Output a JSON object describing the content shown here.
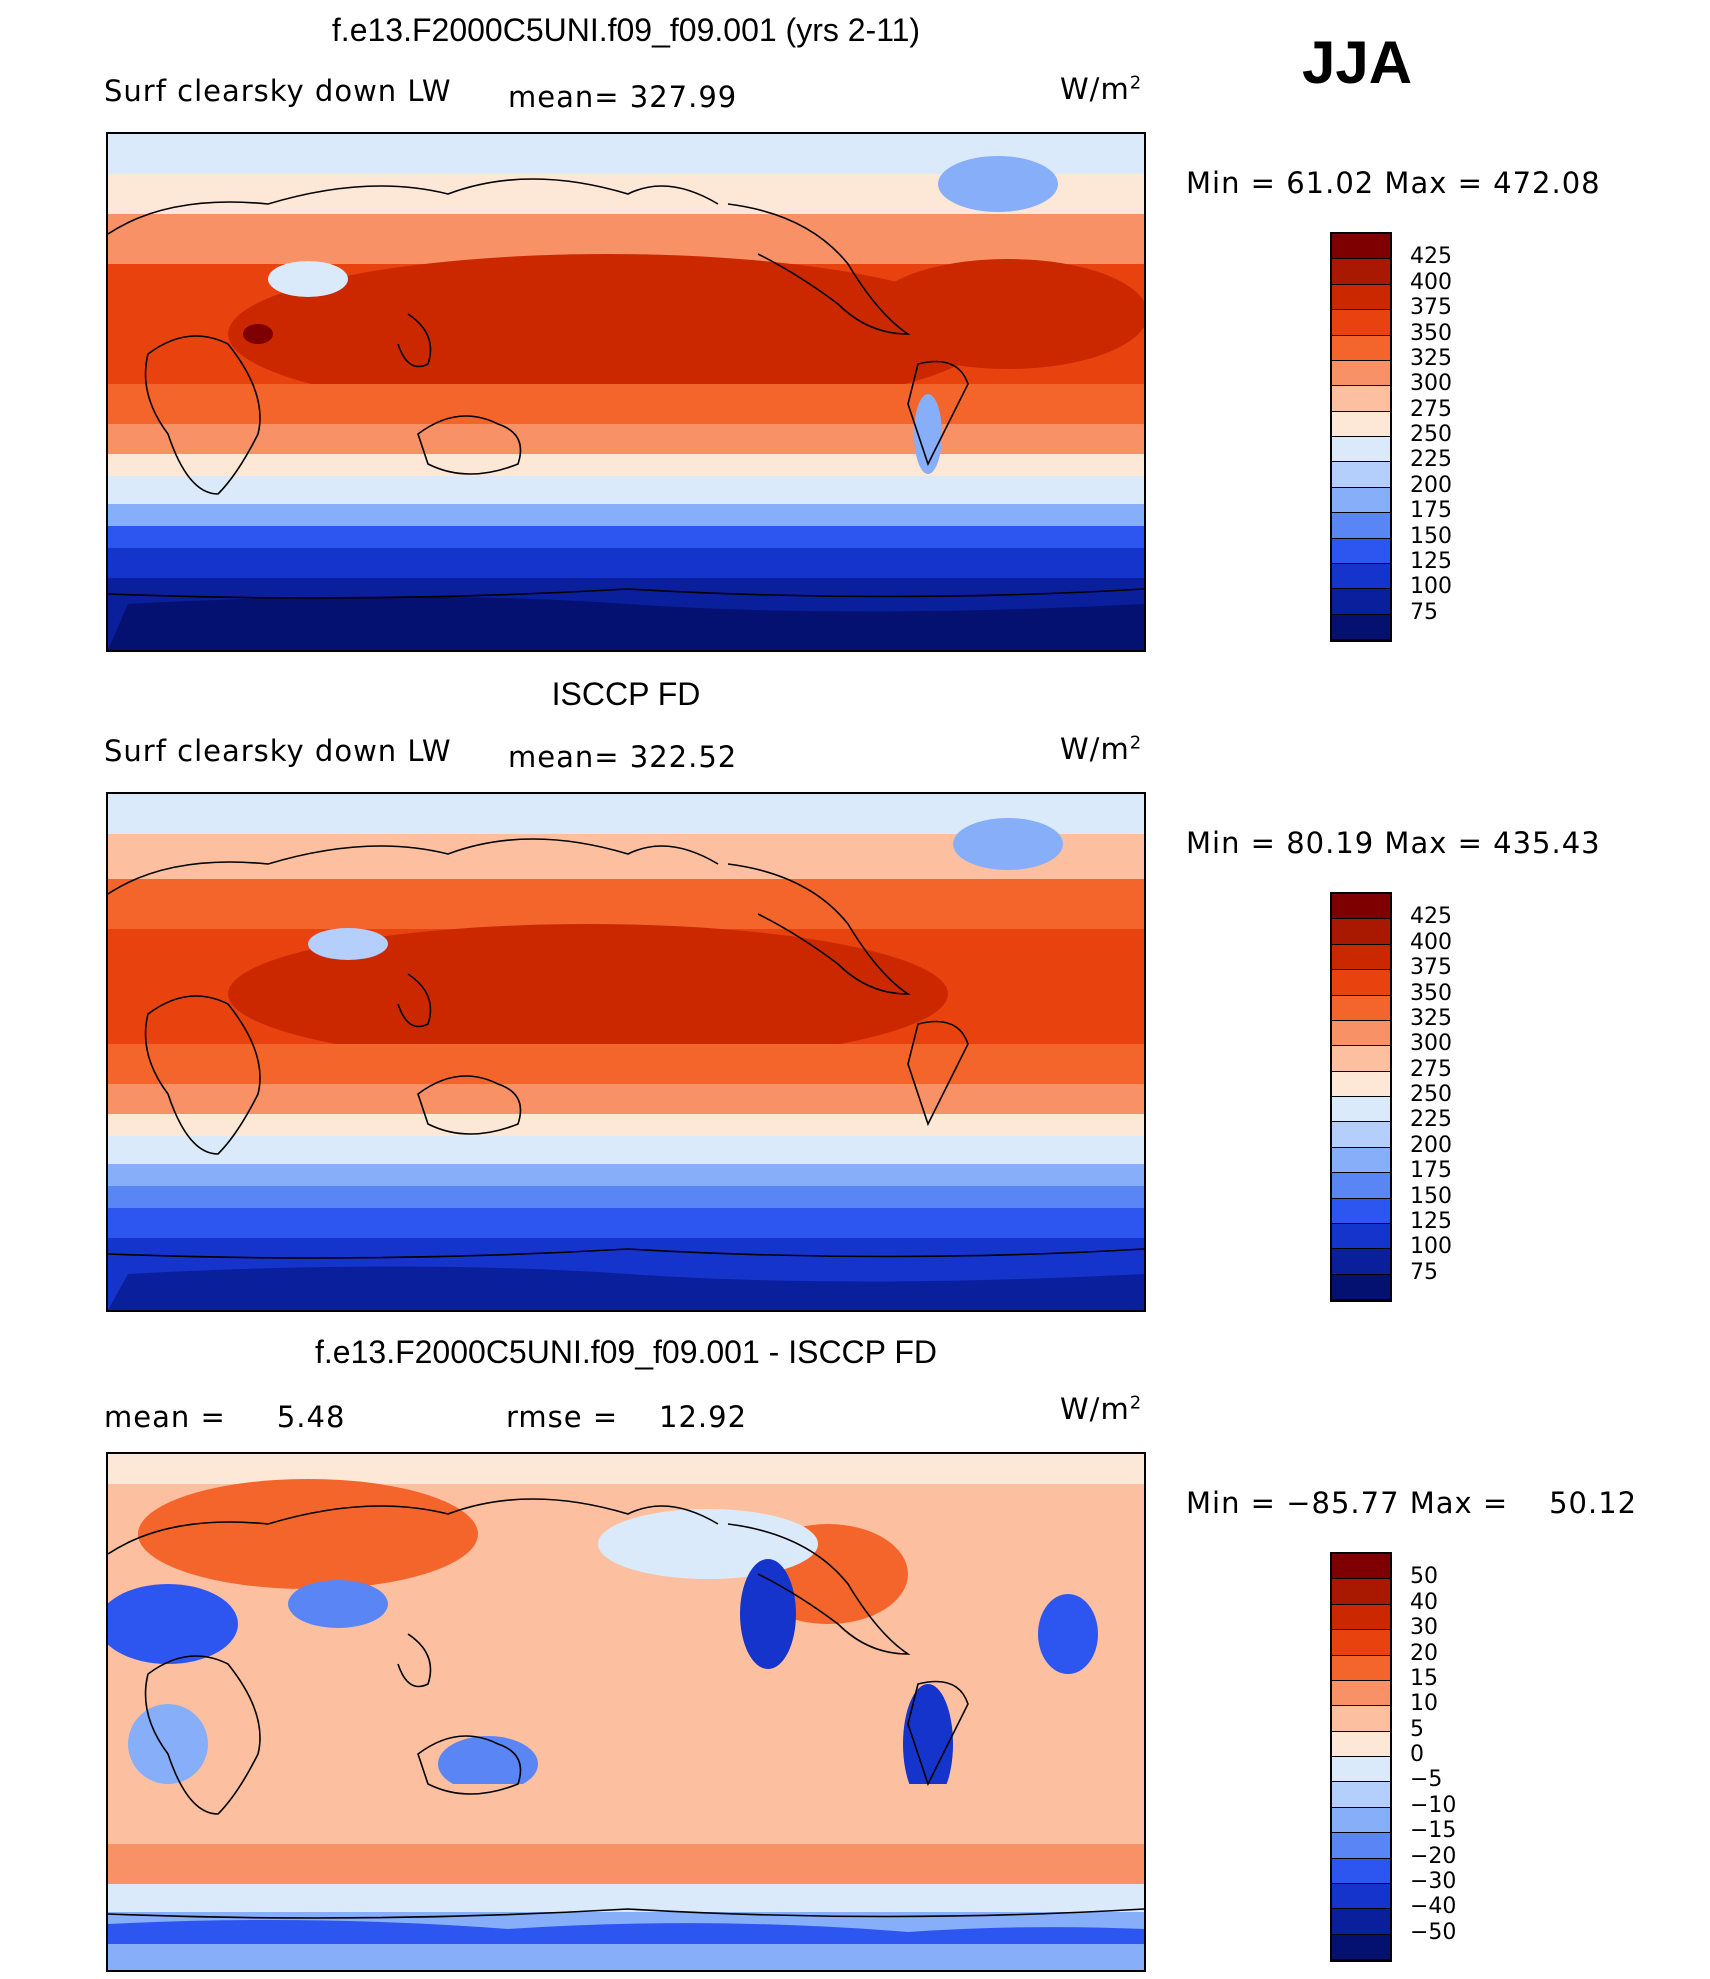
{
  "season": "JJA",
  "units": "W/m",
  "units_sup": "2",
  "panels": [
    {
      "title": "f.e13.F2000C5UNI.f09_f09.001 (yrs 2-11)",
      "variable": "Surf clearsky down LW",
      "stat1": "mean= 327.99",
      "stat2": "",
      "minmax": "Min =   61.02 Max = 472.08",
      "scale": "abs",
      "levels": [
        "425",
        "400",
        "375",
        "350",
        "325",
        "300",
        "275",
        "250",
        "225",
        "200",
        "175",
        "150",
        "125",
        "100",
        "75"
      ]
    },
    {
      "title": "ISCCP FD",
      "variable": "Surf clearsky down LW",
      "stat1": "mean= 322.52",
      "stat2": "",
      "minmax": "Min =   80.19 Max = 435.43",
      "scale": "abs",
      "levels": [
        "425",
        "400",
        "375",
        "350",
        "325",
        "300",
        "275",
        "250",
        "225",
        "200",
        "175",
        "150",
        "125",
        "100",
        "75"
      ]
    },
    {
      "title": "f.e13.F2000C5UNI.f09_f09.001 - ISCCP FD",
      "variable": "",
      "stat1": "mean =     5.48",
      "stat2": "rmse =    12.92",
      "minmax": "Min = −85.77 Max =    50.12",
      "scale": "diff",
      "levels": [
        "50",
        "40",
        "30",
        "20",
        "15",
        "10",
        "5",
        "0",
        "−5",
        "−10",
        "−15",
        "−20",
        "−30",
        "−40",
        "−50"
      ]
    }
  ],
  "colorbar_colors": [
    "#7e0000",
    "#a91800",
    "#cc2800",
    "#e8430e",
    "#f4652c",
    "#f99167",
    "#fcc0a0",
    "#fde7d6",
    "#dbeafb",
    "#b4cffb",
    "#86aef9",
    "#5a86f5",
    "#2d55ef",
    "#1534cc",
    "#0a1f9c",
    "#041170"
  ]
}
